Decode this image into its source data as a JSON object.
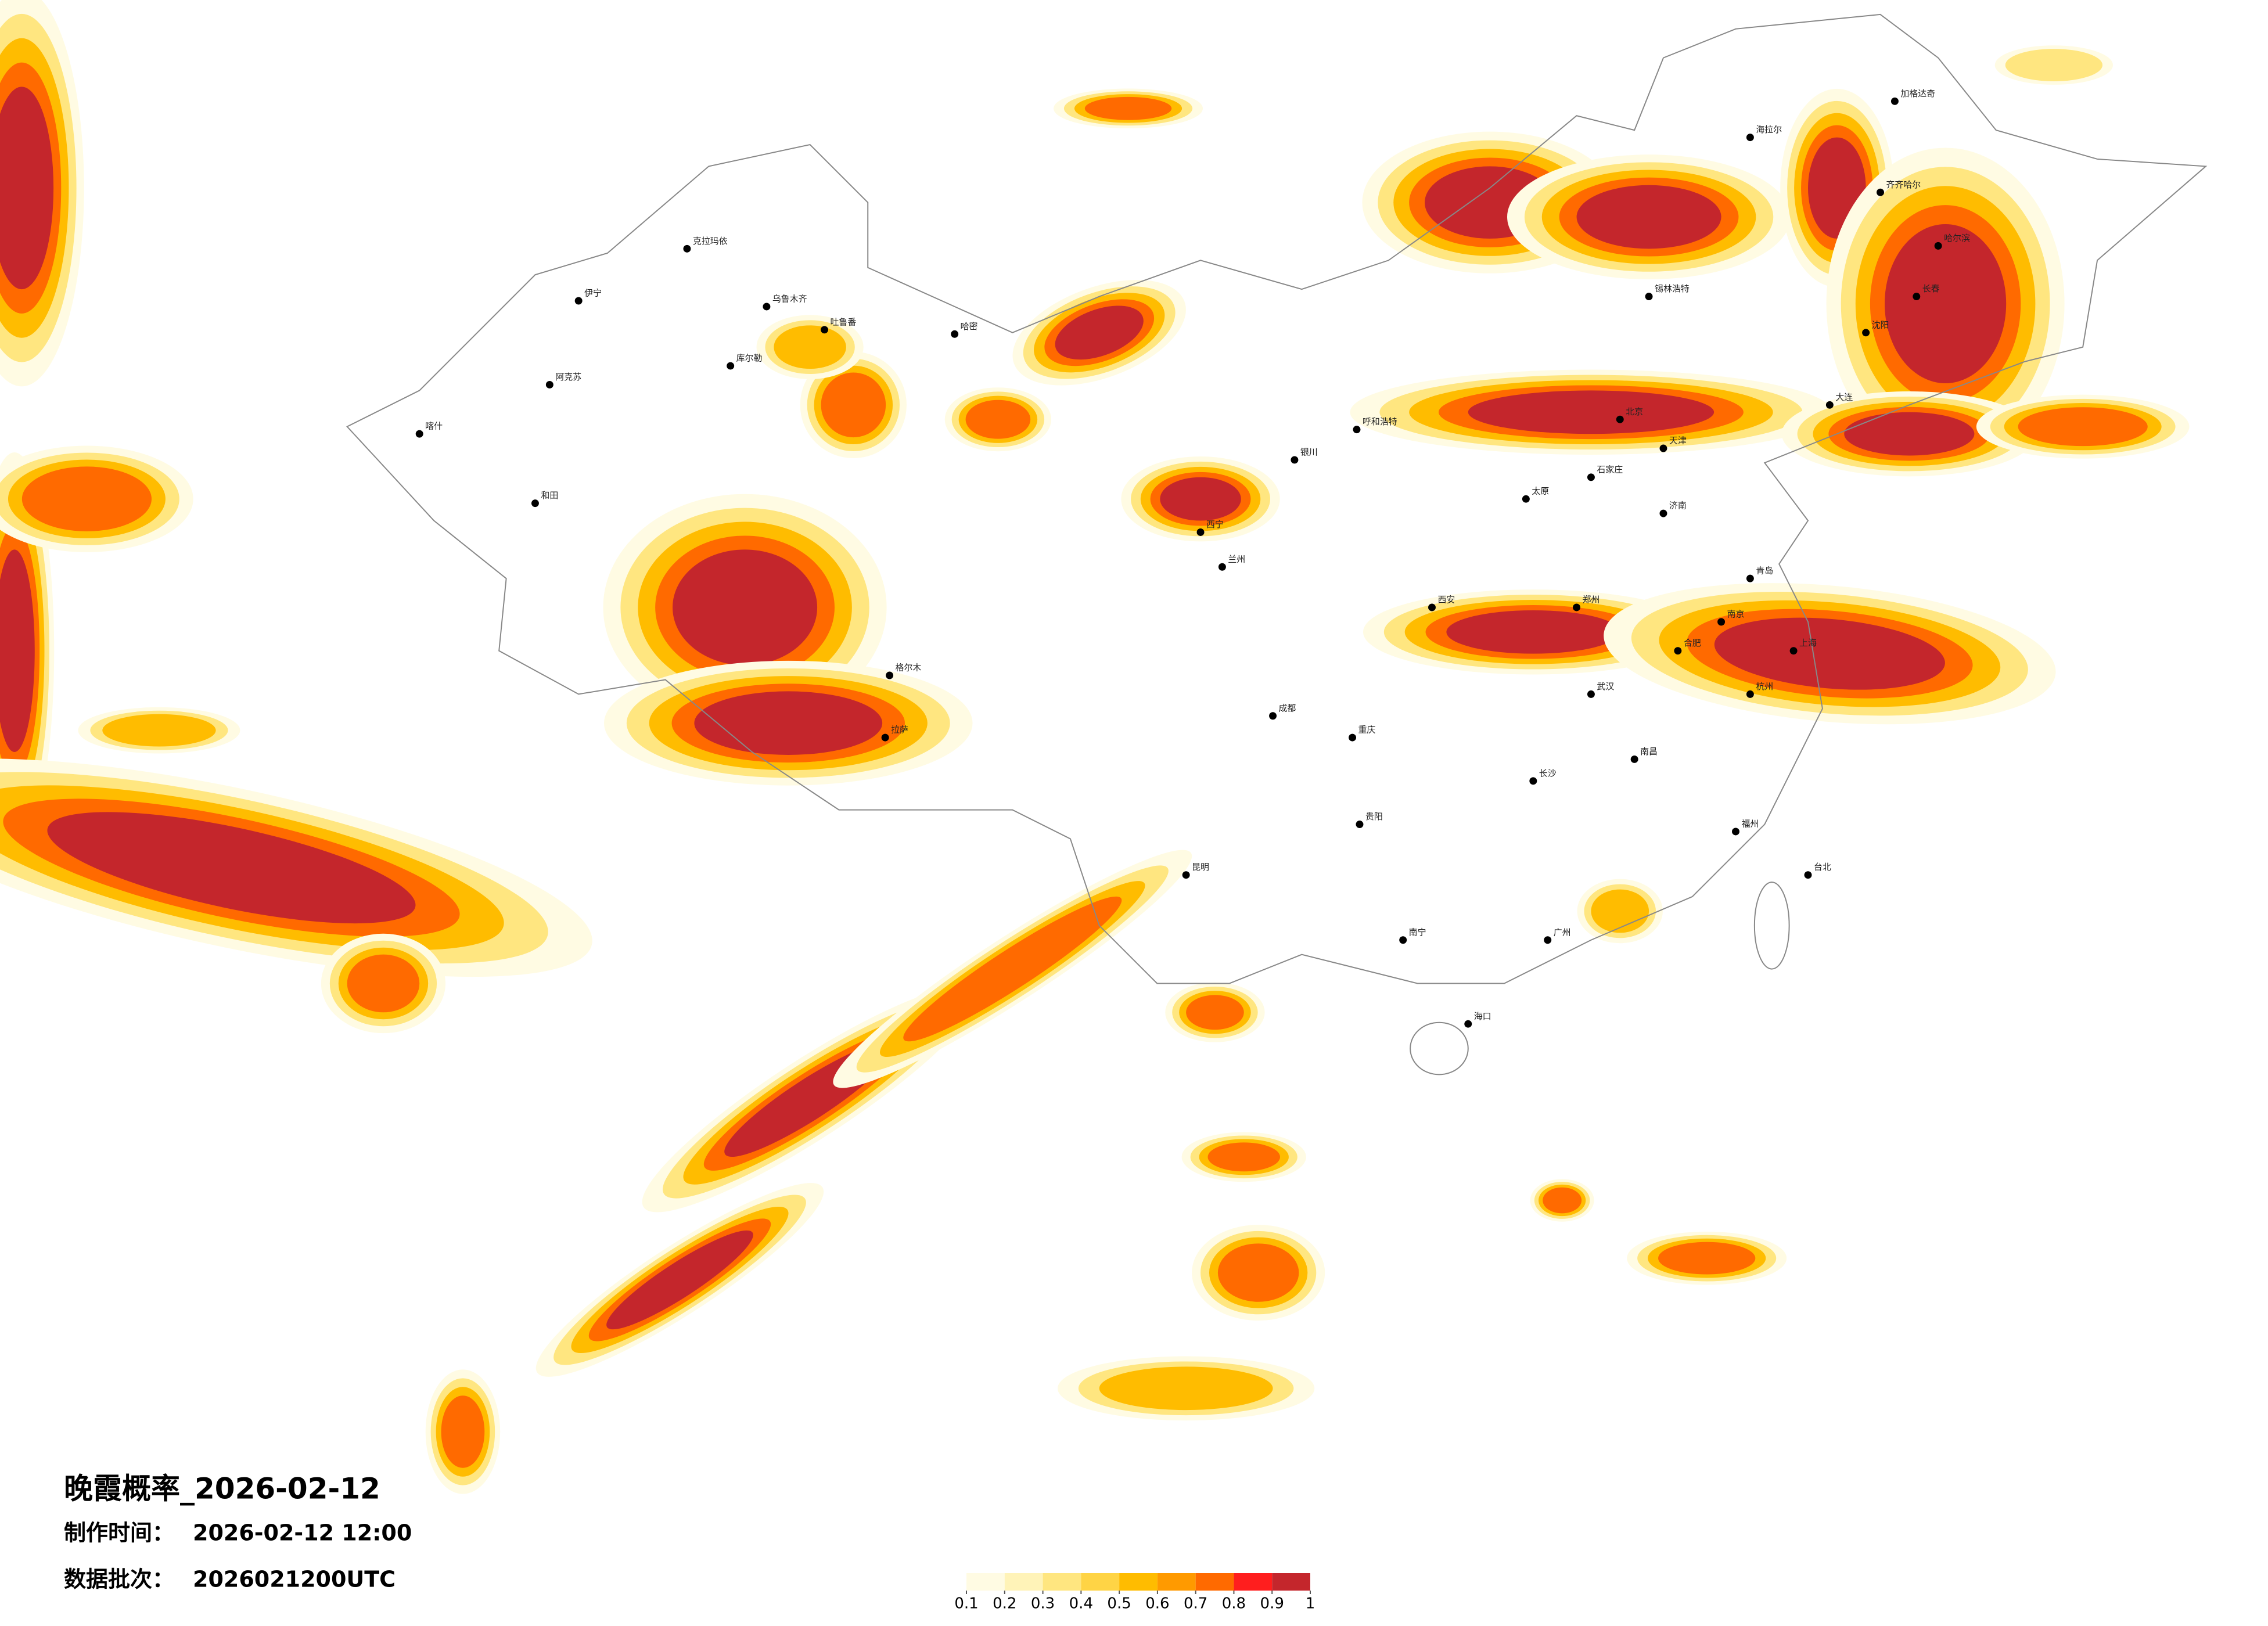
{
  "header": {
    "title": "晚霞概率_2026-02-12",
    "made_label": "制作时间：",
    "made_value": "2026-02-12 12:00",
    "batch_label": "数据批次：",
    "batch_value": "2026021200UTC"
  },
  "legend": {
    "bins": [
      0.1,
      0.2,
      0.3,
      0.4,
      0.5,
      0.6,
      0.7,
      0.8,
      0.9,
      1
    ],
    "colors": [
      "#fffbe3",
      "#fff3b8",
      "#ffe680",
      "#ffd445",
      "#ffbc00",
      "#ff9a00",
      "#ff6a00",
      "#ff1e1e",
      "#c4262c"
    ]
  },
  "cities": [
    "克拉玛依",
    "乌鲁木齐",
    "伊宁",
    "阿克苏",
    "喀什",
    "和田",
    "吐鲁番",
    "哈密",
    "库尔勒",
    "格尔木",
    "拉萨",
    "西宁",
    "兰州",
    "银川",
    "呼和浩特",
    "北京",
    "天津",
    "石家庄",
    "太原",
    "济南",
    "郑州",
    "西安",
    "武汉",
    "南京",
    "上海",
    "杭州",
    "合肥",
    "长沙",
    "南昌",
    "福州",
    "广州",
    "南宁",
    "贵阳",
    "昆明",
    "成都",
    "重庆",
    "海口",
    "台北",
    "沈阳",
    "长春",
    "哈尔滨",
    "齐齐哈尔",
    "海拉尔",
    "加格达奇",
    "锡林浩特",
    "大连",
    "青岛"
  ]
}
